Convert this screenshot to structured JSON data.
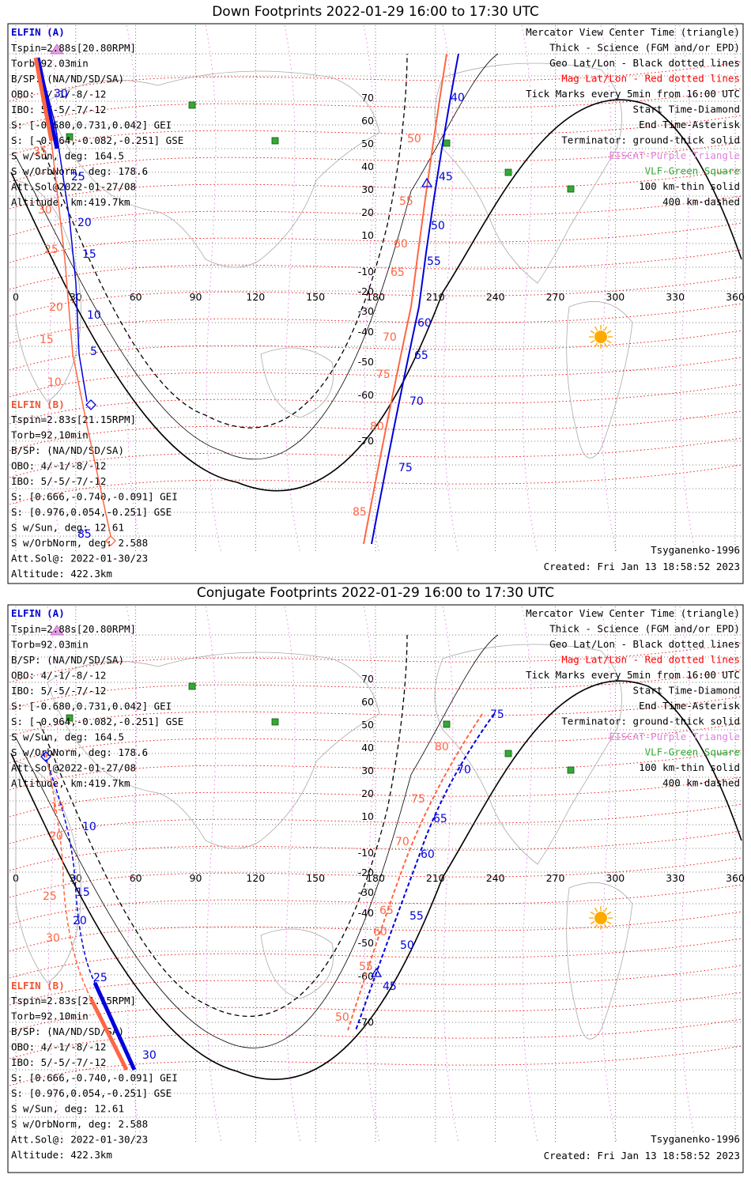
{
  "panels": [
    {
      "title": "Down Footprints 2022-01-29 16:00 to 17:30 UTC",
      "elfin_a": {
        "name": "ELFIN (A)",
        "lines": [
          "Tspin=2.88s[20.80RPM]",
          "Torb=92.03min",
          "B/SP: (NA/ND/SD/SA)",
          "OBO: 4/-1/-8/-12",
          "IBO: 5/-5/-7/-12",
          "S: [-0.680,0.731,0.042] GEI",
          "S: [-0.964,-0.082,-0.251] GSE",
          "S w/Sun, deg: 164.5",
          "S w/OrbNorm, deg: 178.6",
          "Att.Sol@2022-01-27/08",
          "Altitude, km:419.7km"
        ]
      },
      "elfin_b": {
        "name": "ELFIN (B)",
        "lines": [
          "Tspin=2.83s[21.15RPM]",
          "Torb=92.10min",
          "B/SP: (NA/ND/SD/SA)",
          "OBO: 4/-1/-8/-12",
          "IBO: 5/-5/-7/-12",
          "S: [0.666,-0.740,-0.091] GEI",
          "S: [0.976,0.054,-0.251] GSE",
          "S w/Sun, deg: 12.61",
          "S w/OrbNorm, deg: 2.588",
          "Att.Sol@: 2022-01-30/23",
          "Altitude: 422.3km"
        ]
      },
      "blue_ticks": [
        "30",
        "25",
        "20",
        "15",
        "10",
        "5",
        "40",
        "45",
        "50",
        "55",
        "60",
        "65",
        "70",
        "75",
        "85"
      ],
      "red_ticks": [
        "35",
        "30",
        "25",
        "20",
        "15",
        "10",
        "50",
        "55",
        "60",
        "65",
        "70",
        "75",
        "80",
        "85"
      ]
    },
    {
      "title": "Conjugate Footprints 2022-01-29 16:00 to 17:30 UTC",
      "elfin_a": {
        "name": "ELFIN (A)",
        "lines": [
          "Tspin=2.88s[20.80RPM]",
          "Torb=92.03min",
          "B/SP: (NA/ND/SD/SA)",
          "OBO: 4/-1/-8/-12",
          "IBO: 5/-5/-7/-12",
          "S: [-0.680,0.731,0.042] GEI",
          "S: [-0.964,-0.082,-0.251] GSE",
          "S w/Sun, deg: 164.5",
          "S w/OrbNorm, deg: 178.6",
          "Att.Sol@2022-01-27/08",
          "Altitude, km:419.7km"
        ]
      },
      "elfin_b": {
        "name": "ELFIN (B)",
        "lines": [
          "Tspin=2.83s[21.15RPM]",
          "Torb=92.10min",
          "B/SP: (NA/ND/SD/SA)",
          "OBO: 4/-1/-8/-12",
          "IBO: 5/-5/-7/-12",
          "S: [0.666,-0.740,-0.091] GEI",
          "S: [0.976,0.054,-0.251] GSE",
          "S w/Sun, deg: 12.61",
          "S w/OrbNorm, deg: 2.588",
          "Att.Sol@: 2022-01-30/23",
          "Altitude: 422.3km"
        ]
      },
      "blue_ticks": [
        "10",
        "15",
        "20",
        "25",
        "30",
        "75",
        "70",
        "65",
        "60",
        "55",
        "50",
        "45"
      ],
      "red_ticks": [
        "15",
        "20",
        "25",
        "30",
        "80",
        "75",
        "70",
        "65",
        "60",
        "55",
        "50"
      ]
    }
  ],
  "legend": [
    {
      "text": "Mercator View Center Time (triangle)",
      "color": "#000000"
    },
    {
      "text": "Thick - Science (FGM and/or EPD)",
      "color": "#000000"
    },
    {
      "text": "Geo Lat/Lon - Black dotted lines",
      "color": "#000000"
    },
    {
      "text": "Mag Lat/Lon - Red dotted lines",
      "color": "#ff0000"
    },
    {
      "text": "Tick Marks every 5min from 16:00 UTC",
      "color": "#000000"
    },
    {
      "text": "Start Time-Diamond",
      "color": "#000000"
    },
    {
      "text": "End Time-Asterisk",
      "color": "#000000"
    },
    {
      "text": "Terminator: ground-thick solid",
      "color": "#000000"
    },
    {
      "text": "EISCAT-Purple Triangle",
      "color": "#e080e0"
    },
    {
      "text": "VLF-Green Square",
      "color": "#33aa33"
    },
    {
      "text": "100 km-thin solid",
      "color": "#000000"
    },
    {
      "text": "400 km-dashed",
      "color": "#000000"
    }
  ],
  "footer": {
    "model": "Tsyganenko-1996",
    "created": "Created: Fri Jan 13 18:58:52 2023"
  },
  "axes": {
    "lon_ticks": [
      "0",
      "30",
      "60",
      "90",
      "120",
      "150",
      "180",
      "210",
      "240",
      "270",
      "300",
      "330",
      "360"
    ],
    "lat_ticks": [
      "70",
      "60",
      "50",
      "40",
      "30",
      "20",
      "10",
      "-10",
      "-20",
      "-30",
      "-40",
      "-50",
      "-60",
      "-70"
    ]
  },
  "colors": {
    "elfin_a": "#0000dd",
    "elfin_b": "#ff6644",
    "mag_grid": "#ee0000",
    "geo_grid": "#444444",
    "eiscat": "#cc66cc",
    "vlf": "#33aa33",
    "sun": "#ffaa00"
  }
}
